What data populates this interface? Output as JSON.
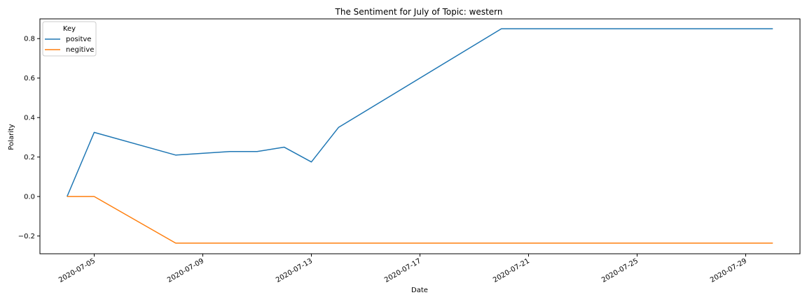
{
  "chart_data": {
    "type": "line",
    "title": "The Sentiment for July of Topic: western",
    "xlabel": "Date",
    "ylabel": "Polarity",
    "x_type": "date",
    "xlim": [
      "2020-07-03",
      "2020-07-31"
    ],
    "ylim": [
      -0.29,
      0.9
    ],
    "x_ticks": [
      "2020-07-05",
      "2020-07-09",
      "2020-07-13",
      "2020-07-17",
      "2020-07-21",
      "2020-07-25",
      "2020-07-29"
    ],
    "y_ticks": [
      -0.2,
      0.0,
      0.2,
      0.4,
      0.6,
      0.8
    ],
    "y_tick_labels": [
      "−0.2",
      "0.0",
      "0.2",
      "0.4",
      "0.6",
      "0.8"
    ],
    "grid": false,
    "legend": {
      "title": "Key",
      "placement": "top-left"
    },
    "series": [
      {
        "name": "positve",
        "color": "#1f77b4",
        "points": [
          [
            "2020-07-04",
            0.0
          ],
          [
            "2020-07-05",
            0.325
          ],
          [
            "2020-07-08",
            0.21
          ],
          [
            "2020-07-10",
            0.228
          ],
          [
            "2020-07-11",
            0.228
          ],
          [
            "2020-07-12",
            0.25
          ],
          [
            "2020-07-13",
            0.175
          ],
          [
            "2020-07-14",
            0.35
          ],
          [
            "2020-07-20",
            0.85
          ],
          [
            "2020-07-30",
            0.85
          ]
        ]
      },
      {
        "name": "negitive",
        "color": "#ff7f0e",
        "points": [
          [
            "2020-07-04",
            0.0
          ],
          [
            "2020-07-05",
            0.0
          ],
          [
            "2020-07-08",
            -0.236
          ],
          [
            "2020-07-30",
            -0.236
          ]
        ]
      }
    ]
  }
}
